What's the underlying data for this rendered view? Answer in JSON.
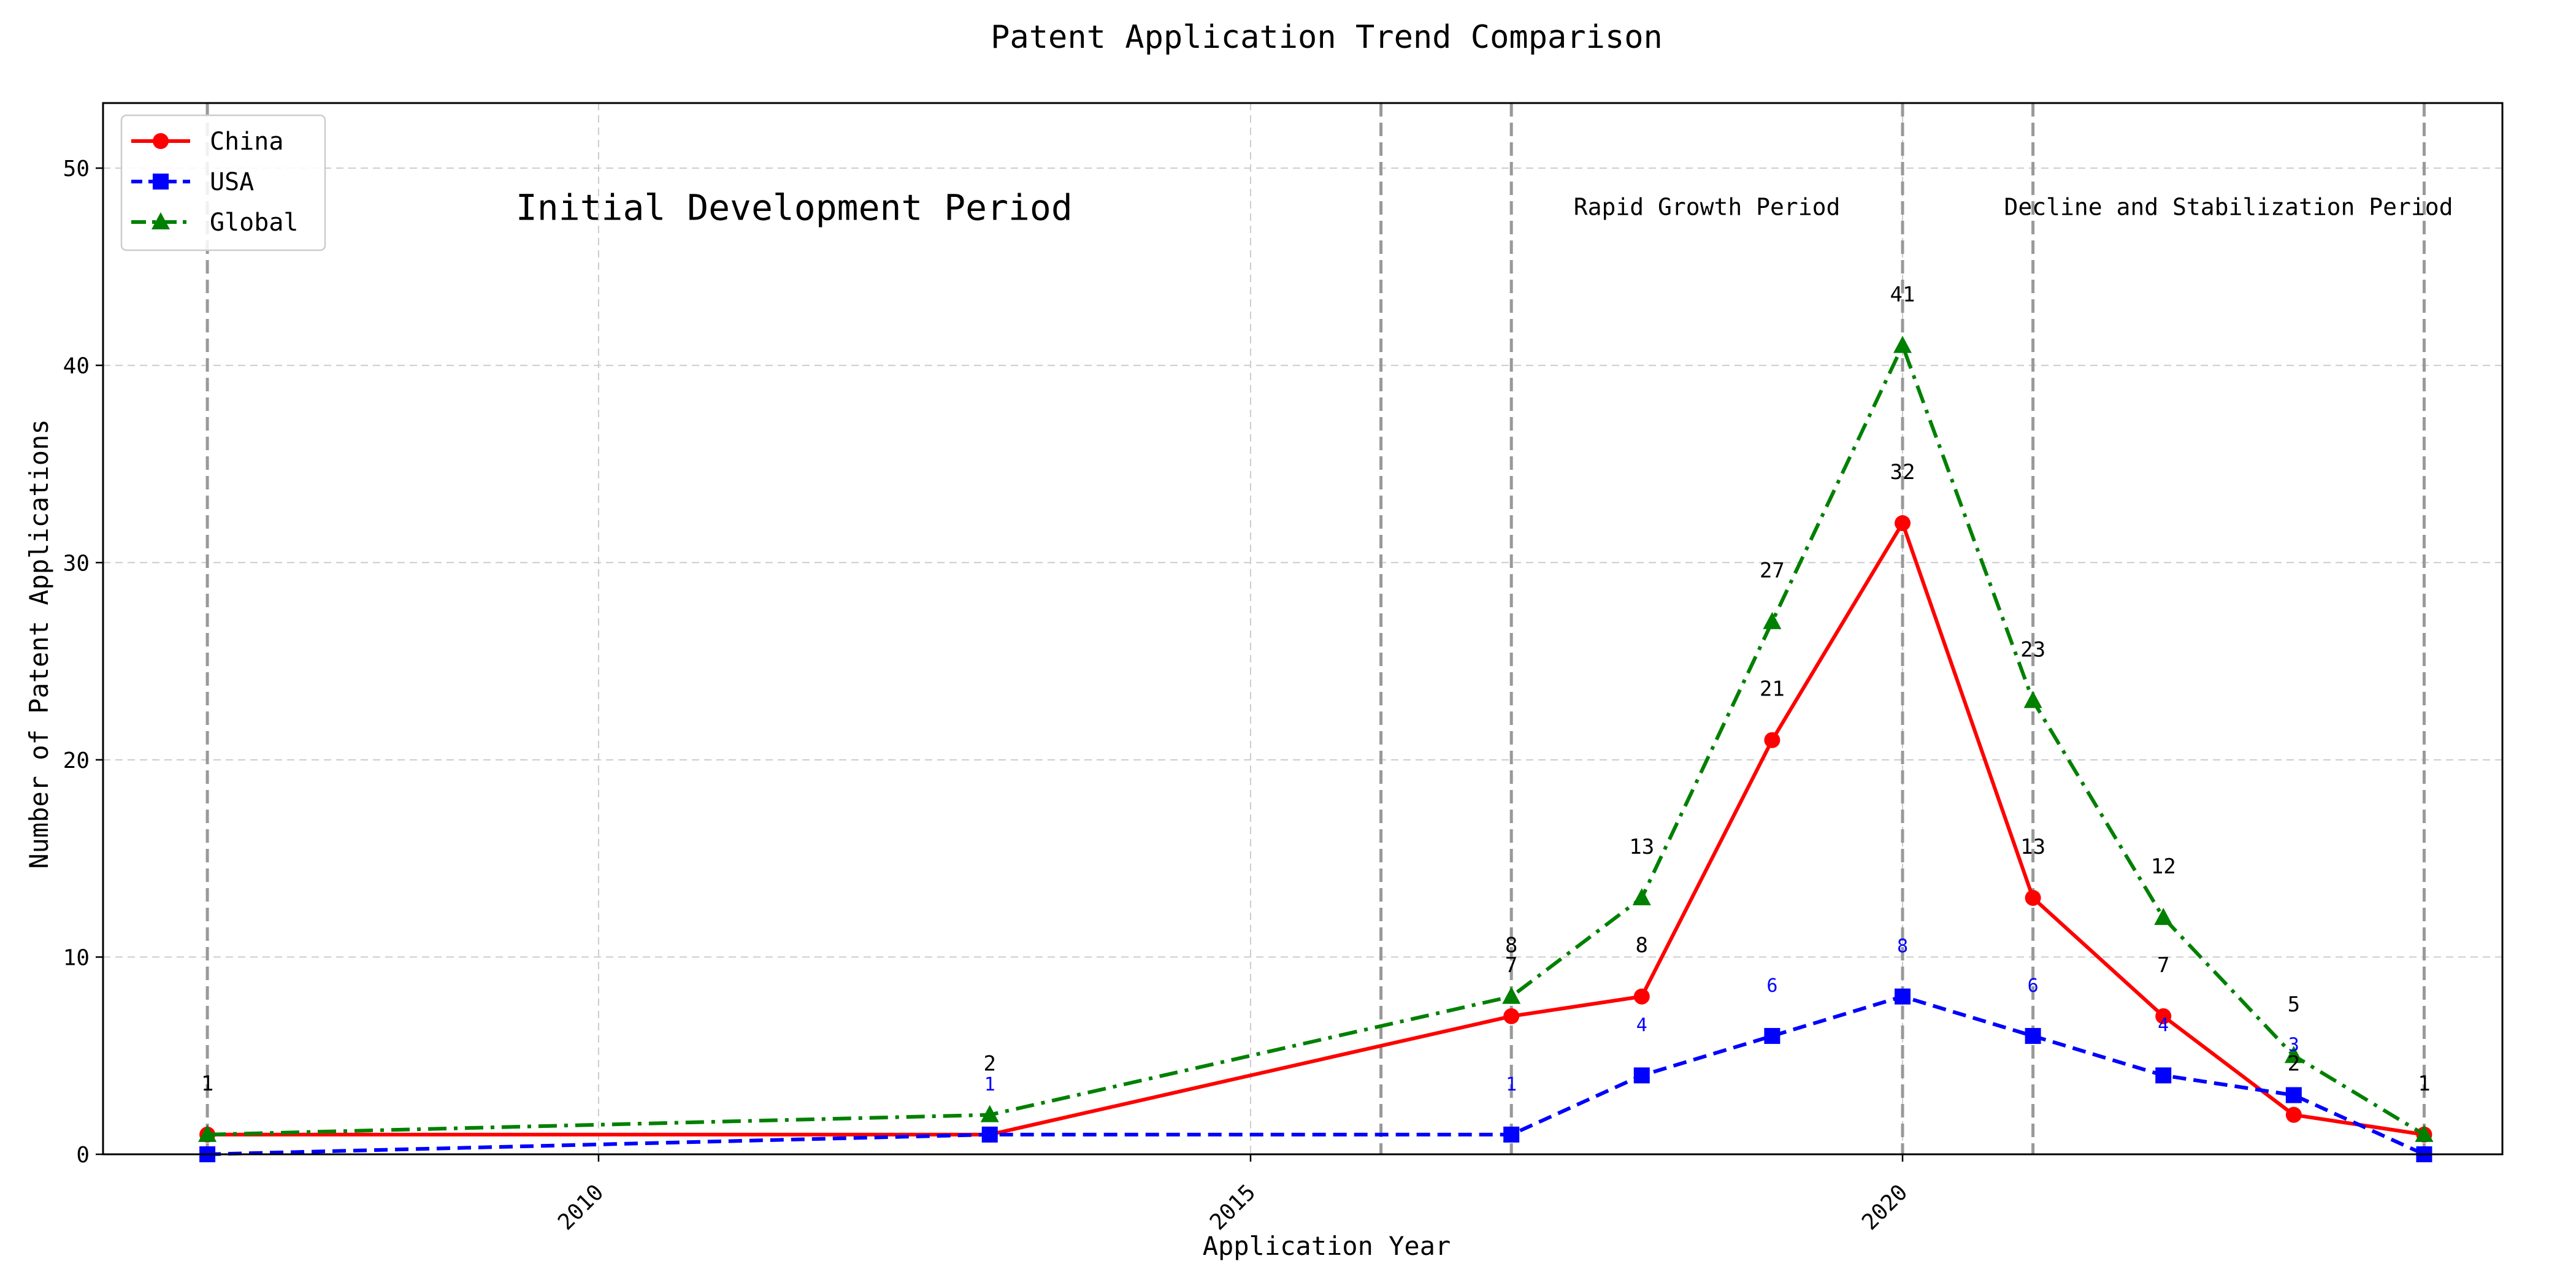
{
  "chart_data": {
    "type": "line",
    "title": "Patent Application Trend Comparison",
    "xlabel": "Application Year",
    "ylabel": "Number of Patent Applications",
    "xlim": [
      2006.2,
      2024.6
    ],
    "ylim": [
      0,
      53.3
    ],
    "x_ticks": [
      2010,
      2015,
      2020
    ],
    "y_ticks": [
      0,
      10,
      20,
      30,
      40,
      50
    ],
    "grid": true,
    "legend_position": "top-left",
    "period_boundaries": [
      2007,
      2016,
      2017,
      2020,
      2021,
      2024
    ],
    "period_labels": [
      {
        "text": "Initial Development Period",
        "x": 2011.5,
        "y": 48,
        "size": "large"
      },
      {
        "text": "Rapid Growth Period",
        "x": 2018.5,
        "y": 48,
        "size": "small"
      },
      {
        "text": "Decline and Stabilization Period",
        "x": 2022.5,
        "y": 48,
        "size": "small"
      }
    ],
    "series": [
      {
        "name": "China",
        "color": "#ff0000",
        "line_style": "solid",
        "marker": "circle",
        "x": [
          2007,
          2013,
          2017,
          2018,
          2019,
          2020,
          2021,
          2022,
          2023,
          2024
        ],
        "y": [
          1,
          1,
          7,
          8,
          21,
          32,
          13,
          7,
          2,
          1
        ],
        "labels": [
          "",
          "",
          "7",
          "8",
          "21",
          "32",
          "13",
          "7",
          "2",
          ""
        ]
      },
      {
        "name": "USA",
        "color": "#0000ff",
        "line_style": "dashed",
        "marker": "square",
        "x": [
          2007,
          2013,
          2017,
          2018,
          2019,
          2020,
          2021,
          2022,
          2023,
          2024
        ],
        "y": [
          0,
          1,
          1,
          4,
          6,
          8,
          6,
          4,
          3,
          0
        ],
        "labels": [
          "",
          "1",
          "1",
          "4",
          "6",
          "8",
          "6",
          "4",
          "3",
          ""
        ]
      },
      {
        "name": "Global",
        "color": "#008000",
        "line_style": "dashdot",
        "marker": "triangle",
        "x": [
          2007,
          2013,
          2017,
          2018,
          2019,
          2020,
          2021,
          2022,
          2023,
          2024
        ],
        "y": [
          1,
          2,
          8,
          13,
          27,
          41,
          23,
          12,
          5,
          1
        ],
        "labels": [
          "1",
          "2",
          "8",
          "13",
          "27",
          "41",
          "23",
          "12",
          "5",
          "1"
        ]
      }
    ]
  }
}
